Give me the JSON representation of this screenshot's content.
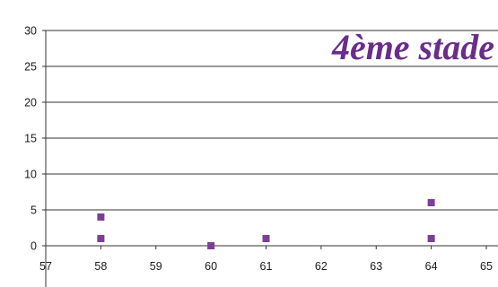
{
  "chart_data": {
    "type": "scatter",
    "title": "4ème stade",
    "xlabel": "",
    "ylabel": "",
    "xlim": [
      57,
      65
    ],
    "ylim": [
      0,
      30
    ],
    "x_ticks": [
      "57",
      "58",
      "59",
      "60",
      "61",
      "62",
      "63",
      "64",
      "65"
    ],
    "y_ticks": [
      "0",
      "5",
      "10",
      "15",
      "20",
      "25",
      "30"
    ],
    "grid": "horizontal",
    "legend": "none",
    "marker_color": "#7b3f98",
    "title_color": "#6a2e8a",
    "points": [
      {
        "x": 58,
        "y": 4
      },
      {
        "x": 58,
        "y": 1
      },
      {
        "x": 60,
        "y": 0
      },
      {
        "x": 61,
        "y": 1
      },
      {
        "x": 64,
        "y": 6
      },
      {
        "x": 64,
        "y": 1
      }
    ]
  }
}
